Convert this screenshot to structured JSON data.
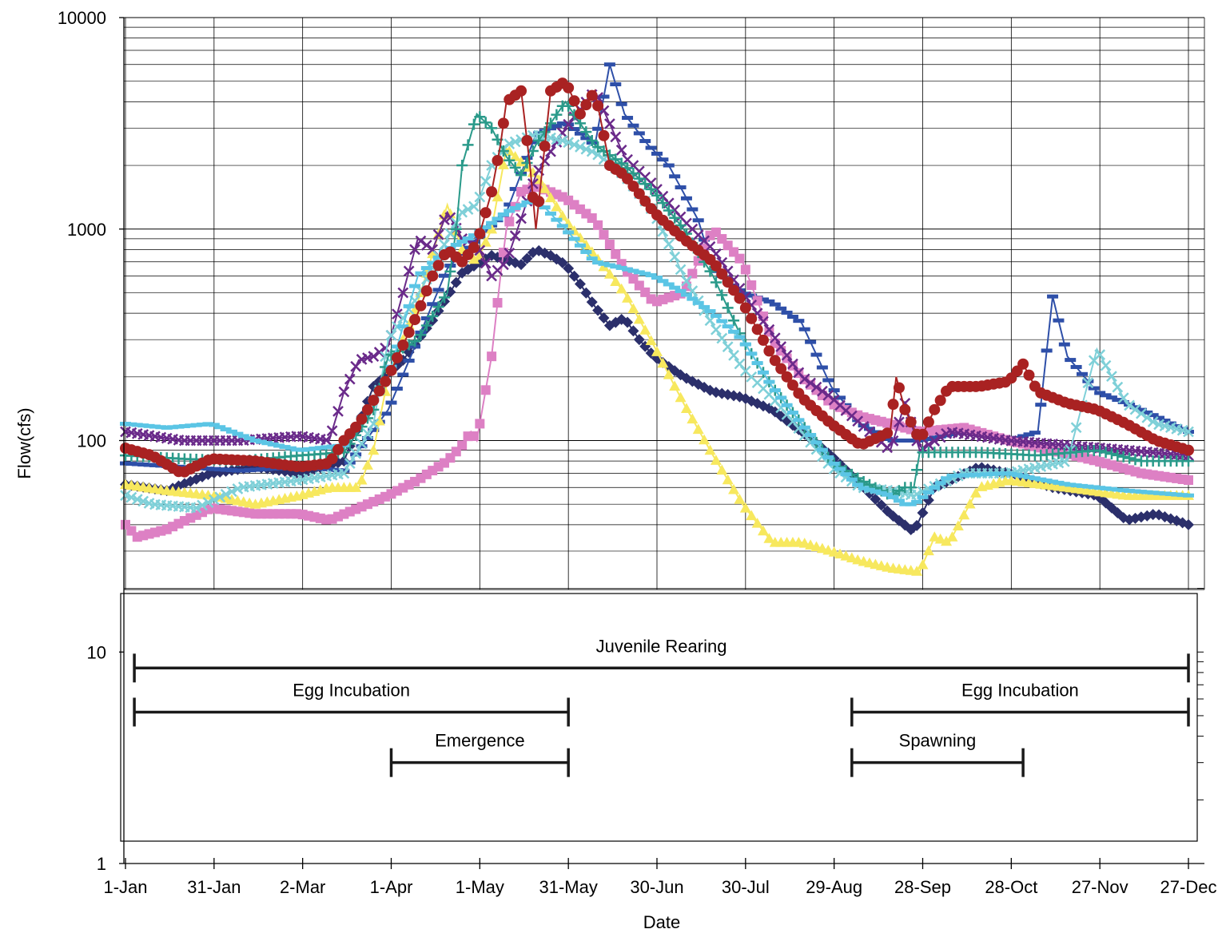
{
  "chart_data": {
    "type": "line",
    "title": "",
    "xlabel": "Date",
    "ylabel": "Flow(cfs)",
    "yscale": "log",
    "ylim": [
      1,
      10000
    ],
    "y_ticks": [
      "10000",
      "1000",
      "100",
      "10",
      "1"
    ],
    "y_tick_values": [
      10000,
      1000,
      100,
      10,
      1
    ],
    "x_ticks": [
      "1-Jan",
      "31-Jan",
      "2-Mar",
      "1-Apr",
      "1-May",
      "31-May",
      "30-Jun",
      "30-Jul",
      "29-Aug",
      "28-Sep",
      "28-Oct",
      "27-Nov",
      "27-Dec"
    ],
    "x_tick_days": [
      1,
      31,
      61,
      91,
      121,
      151,
      181,
      211,
      241,
      271,
      301,
      331,
      361
    ],
    "xlim_days": [
      1,
      361
    ],
    "grid": true,
    "legend": "none",
    "series": [
      {
        "color": "#2b2f6b",
        "marker": "diamond",
        "x": [
          1,
          15,
          30,
          45,
          60,
          75,
          85,
          95,
          105,
          115,
          125,
          135,
          140,
          145,
          150,
          155,
          160,
          165,
          170,
          175,
          180,
          190,
          200,
          210,
          220,
          230,
          240,
          250,
          260,
          268,
          275,
          290,
          300,
          315,
          330,
          340,
          350,
          361
        ],
        "y": [
          62,
          58,
          70,
          75,
          70,
          80,
          180,
          240,
          370,
          620,
          750,
          680,
          800,
          750,
          680,
          550,
          430,
          350,
          380,
          300,
          250,
          200,
          170,
          160,
          140,
          110,
          85,
          62,
          45,
          37,
          60,
          75,
          70,
          60,
          55,
          42,
          45,
          40
        ]
      },
      {
        "color": "#2e4fa8",
        "marker": "dash",
        "x": [
          1,
          20,
          40,
          60,
          75,
          90,
          100,
          110,
          120,
          130,
          140,
          150,
          160,
          165,
          170,
          178,
          185,
          195,
          200,
          210,
          220,
          230,
          240,
          250,
          260,
          270,
          285,
          300,
          310,
          315,
          320,
          330,
          340,
          350,
          361
        ],
        "y": [
          78,
          75,
          72,
          75,
          72,
          140,
          300,
          650,
          900,
          1200,
          2800,
          3200,
          2500,
          6000,
          3500,
          2500,
          2000,
          1100,
          650,
          500,
          450,
          360,
          180,
          120,
          100,
          100,
          110,
          100,
          110,
          480,
          250,
          170,
          150,
          130,
          110
        ]
      },
      {
        "color": "#dd80c4",
        "marker": "square",
        "x": [
          1,
          5,
          15,
          30,
          45,
          60,
          70,
          80,
          90,
          100,
          110,
          115,
          118,
          120,
          125,
          128,
          130,
          135,
          140,
          150,
          160,
          170,
          180,
          190,
          200,
          210,
          220,
          230,
          240,
          250,
          260,
          270,
          285,
          300,
          315,
          330,
          345,
          361
        ],
        "y": [
          40,
          35,
          38,
          48,
          45,
          45,
          42,
          48,
          55,
          65,
          80,
          95,
          110,
          100,
          250,
          600,
          1000,
          1500,
          1600,
          1400,
          1100,
          650,
          450,
          500,
          1000,
          700,
          300,
          200,
          150,
          130,
          120,
          110,
          115,
          100,
          90,
          80,
          70,
          65
        ]
      },
      {
        "color": "#f7e85e",
        "marker": "triangle",
        "x": [
          1,
          15,
          30,
          45,
          60,
          70,
          80,
          85,
          90,
          100,
          110,
          115,
          120,
          125,
          130,
          140,
          150,
          160,
          170,
          180,
          190,
          200,
          210,
          220,
          230,
          240,
          250,
          260,
          270,
          275,
          280,
          290,
          300,
          320,
          340,
          361
        ],
        "y": [
          62,
          58,
          55,
          50,
          55,
          60,
          60,
          90,
          200,
          450,
          1300,
          800,
          700,
          1000,
          2400,
          1800,
          1100,
          750,
          500,
          280,
          150,
          85,
          50,
          33,
          33,
          30,
          27,
          25,
          24,
          35,
          33,
          60,
          65,
          60,
          55,
          55
        ]
      },
      {
        "color": "#6a2a8a",
        "marker": "x",
        "x": [
          1,
          20,
          40,
          60,
          70,
          75,
          80,
          85,
          90,
          95,
          100,
          105,
          110,
          115,
          120,
          125,
          130,
          140,
          150,
          160,
          170,
          180,
          190,
          200,
          210,
          220,
          230,
          240,
          250,
          260,
          265,
          270,
          280,
          300,
          320,
          340,
          361
        ],
        "y": [
          110,
          100,
          100,
          105,
          100,
          170,
          240,
          250,
          280,
          500,
          900,
          800,
          1200,
          900,
          850,
          600,
          700,
          1800,
          3000,
          4500,
          2200,
          1600,
          1100,
          800,
          500,
          320,
          200,
          160,
          120,
          90,
          150,
          90,
          110,
          100,
          95,
          90,
          85
        ]
      },
      {
        "color": "#7fd0d8",
        "marker": "x",
        "x": [
          1,
          10,
          25,
          40,
          60,
          75,
          85,
          90,
          100,
          110,
          115,
          120,
          125,
          130,
          140,
          150,
          160,
          170,
          180,
          190,
          200,
          210,
          220,
          230,
          240,
          250,
          260,
          268,
          285,
          300,
          320,
          330,
          340,
          350,
          361
        ],
        "y": [
          55,
          50,
          48,
          60,
          65,
          70,
          120,
          300,
          480,
          900,
          1200,
          1300,
          2000,
          2500,
          2800,
          2600,
          2300,
          1800,
          1200,
          600,
          350,
          220,
          160,
          110,
          75,
          60,
          58,
          55,
          70,
          70,
          80,
          270,
          150,
          120,
          110
        ]
      },
      {
        "color": "#2a9a8a",
        "marker": "plus",
        "x": [
          1,
          20,
          40,
          60,
          75,
          85,
          90,
          100,
          110,
          113,
          115,
          120,
          125,
          130,
          135,
          140,
          150,
          160,
          170,
          180,
          190,
          200,
          210,
          220,
          230,
          240,
          250,
          260,
          265,
          268,
          270,
          290,
          310,
          330,
          345,
          361
        ],
        "y": [
          85,
          82,
          80,
          85,
          88,
          140,
          250,
          300,
          500,
          1000,
          2000,
          3500,
          3000,
          2200,
          1800,
          2500,
          4000,
          2500,
          2000,
          1500,
          1000,
          600,
          300,
          180,
          120,
          80,
          65,
          55,
          60,
          60,
          88,
          88,
          85,
          90,
          80,
          80
        ]
      },
      {
        "color": "#5bc5e5",
        "marker": "dash",
        "x": [
          1,
          15,
          30,
          45,
          60,
          75,
          90,
          100,
          110,
          120,
          130,
          140,
          150,
          160,
          170,
          180,
          190,
          200,
          210,
          220,
          230,
          240,
          250,
          260,
          265,
          268,
          280,
          300,
          320,
          340,
          361
        ],
        "y": [
          120,
          115,
          120,
          100,
          90,
          95,
          200,
          600,
          800,
          950,
          1200,
          1400,
          1000,
          700,
          650,
          600,
          500,
          400,
          300,
          180,
          120,
          80,
          60,
          55,
          50,
          50,
          68,
          70,
          62,
          58,
          55
        ]
      },
      {
        "color": "#a92222",
        "marker": "circle",
        "x": [
          1,
          10,
          20,
          30,
          45,
          60,
          70,
          75,
          80,
          90,
          100,
          105,
          110,
          115,
          120,
          125,
          128,
          130,
          135,
          138,
          140,
          145,
          150,
          155,
          160,
          165,
          170,
          180,
          190,
          200,
          210,
          220,
          230,
          240,
          250,
          260,
          262,
          265,
          270,
          275,
          280,
          290,
          300,
          305,
          310,
          320,
          330,
          340,
          350,
          361
        ],
        "y": [
          92,
          85,
          70,
          82,
          80,
          75,
          78,
          100,
          120,
          200,
          400,
          600,
          800,
          700,
          850,
          1500,
          2500,
          4000,
          4500,
          2000,
          1000,
          4500,
          5000,
          3500,
          4500,
          2000,
          1800,
          1200,
          900,
          700,
          450,
          250,
          160,
          120,
          95,
          110,
          200,
          140,
          100,
          140,
          180,
          180,
          190,
          230,
          170,
          150,
          140,
          120,
          100,
          90
        ]
      }
    ],
    "annotations": {
      "lower_axis_ticks": [
        "10",
        "1"
      ],
      "periods": [
        {
          "label": "Juvenile Rearing",
          "start": "1-Jan",
          "end": "27-Dec",
          "start_day": 4,
          "end_day": 361,
          "level": 8.4
        },
        {
          "label": "Egg Incubation",
          "start": "1-Jan",
          "end": "31-May",
          "start_day": 4,
          "end_day": 151,
          "level": 5.2
        },
        {
          "label": "Egg Incubation",
          "start": "Sep",
          "end": "27-Dec",
          "start_day": 247,
          "end_day": 361,
          "level": 5.2
        },
        {
          "label": "Emergence",
          "start": "1-Apr",
          "end": "31-May",
          "start_day": 91,
          "end_day": 151,
          "level": 3.0
        },
        {
          "label": "Spawning",
          "start": "Sep",
          "end": "Nov",
          "start_day": 247,
          "end_day": 305,
          "level": 3.0
        }
      ]
    }
  }
}
